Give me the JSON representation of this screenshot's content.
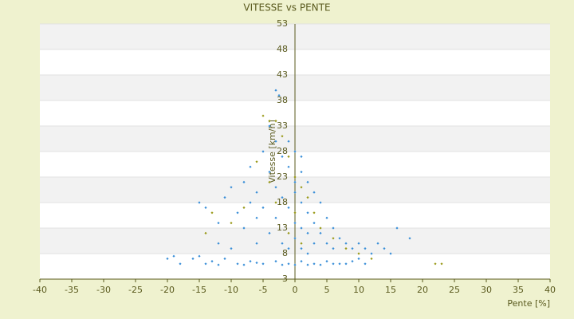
{
  "chart_data": {
    "type": "scatter",
    "title": "VITESSE vs PENTE",
    "x_label": "Pente [%]",
    "y_label": "Vitesse [km/h]",
    "xlim": [
      -40,
      40
    ],
    "ylim": [
      3,
      53
    ],
    "xticks": [
      -40,
      -35,
      -30,
      -25,
      -20,
      -15,
      -10,
      -5,
      0,
      5,
      10,
      15,
      20,
      25,
      30,
      35,
      40
    ],
    "yticks": [
      3,
      8,
      13,
      18,
      23,
      28,
      33,
      38,
      43,
      48,
      53
    ],
    "grid": true,
    "series": [
      {
        "color": "#3a8fd8",
        "x": [
          -20,
          -19,
          -16,
          -15,
          -13,
          -11,
          -9,
          -7,
          -5,
          -3,
          -1,
          1,
          3,
          5,
          7,
          9,
          11,
          -18,
          -14,
          -12,
          -8,
          -6,
          -2,
          0,
          2,
          4,
          6,
          8,
          10,
          -15,
          -14,
          -12,
          -11,
          -10,
          -9,
          -8,
          -8,
          -7,
          -7,
          -6,
          -6,
          -5,
          -5,
          -4,
          -4,
          -3,
          -3,
          -3,
          -2,
          -2,
          -2,
          -1,
          -1,
          -1,
          0,
          0,
          0,
          0,
          1,
          1,
          1,
          1,
          2,
          2,
          2,
          3,
          3,
          3,
          4,
          4,
          5,
          5,
          6,
          6,
          7,
          8,
          9,
          10,
          11,
          12,
          13,
          14,
          15,
          16,
          18,
          -3,
          -2.5,
          -12,
          -10,
          -6,
          -1,
          0,
          2,
          -4,
          1
        ],
        "values": [
          7,
          7.5,
          7,
          7.5,
          6.5,
          7,
          6,
          6.5,
          6,
          6.5,
          6,
          6.5,
          6,
          6.5,
          6,
          6.5,
          6,
          6,
          6,
          5.8,
          5.8,
          6.2,
          5.8,
          5.8,
          5.8,
          5.8,
          6,
          6,
          7,
          18,
          17,
          14,
          19,
          21,
          16,
          13,
          22,
          18,
          25,
          20,
          15,
          28,
          17,
          24,
          12,
          30,
          21,
          15,
          27,
          19,
          10,
          25,
          17,
          9,
          28,
          22,
          14,
          11,
          24,
          18,
          13,
          9,
          22,
          16,
          12,
          20,
          14,
          10,
          18,
          12,
          15,
          10,
          13,
          9,
          11,
          10,
          9,
          10,
          9,
          8,
          10,
          9,
          8,
          13,
          11,
          40,
          39,
          10,
          9,
          10,
          30,
          20,
          8,
          33,
          27
        ]
      },
      {
        "color": "#9a9a1a",
        "x": [
          -5,
          -4,
          -3,
          -2,
          -1,
          0,
          1,
          2,
          -6,
          -8,
          -10,
          -13,
          -14,
          3,
          4,
          6,
          8,
          10,
          12,
          -1,
          0,
          1,
          -3,
          22,
          23,
          -4
        ],
        "values": [
          35,
          34,
          34,
          31,
          27,
          23,
          21,
          19,
          26,
          17,
          14,
          16,
          12,
          16,
          13,
          11,
          9,
          8,
          7,
          12,
          16,
          10,
          18,
          6,
          6,
          22
        ]
      }
    ]
  }
}
